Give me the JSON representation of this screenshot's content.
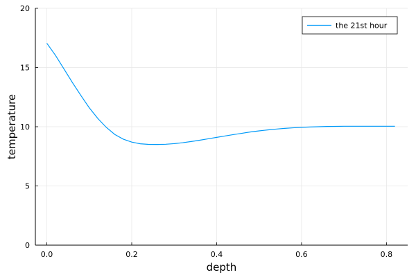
{
  "chart_data": {
    "type": "line",
    "title": "",
    "xlabel": "depth",
    "ylabel": "temperature",
    "xlim": [
      -0.027,
      0.85
    ],
    "ylim": [
      0,
      20
    ],
    "x_ticks": [
      0.0,
      0.2,
      0.4,
      0.6,
      0.8
    ],
    "x_tick_labels": [
      "0.0",
      "0.2",
      "0.4",
      "0.6",
      "0.8"
    ],
    "y_ticks": [
      0,
      5,
      10,
      15,
      20
    ],
    "y_tick_labels": [
      "0",
      "5",
      "10",
      "15",
      "20"
    ],
    "grid": true,
    "legend_position": "top-right",
    "series": [
      {
        "name": "the 21st hour",
        "color": "#009af9",
        "x": [
          0.0,
          0.02,
          0.04,
          0.06,
          0.08,
          0.1,
          0.12,
          0.14,
          0.16,
          0.18,
          0.2,
          0.22,
          0.24,
          0.26,
          0.28,
          0.3,
          0.32,
          0.34,
          0.36,
          0.38,
          0.4,
          0.42,
          0.44,
          0.46,
          0.48,
          0.5,
          0.52,
          0.54,
          0.56,
          0.58,
          0.6,
          0.62,
          0.64,
          0.66,
          0.68,
          0.7,
          0.72,
          0.74,
          0.76,
          0.78,
          0.8,
          0.82
        ],
        "y": [
          17.05,
          16.05,
          14.9,
          13.75,
          12.65,
          11.6,
          10.7,
          9.95,
          9.35,
          8.95,
          8.7,
          8.56,
          8.51,
          8.5,
          8.52,
          8.57,
          8.65,
          8.75,
          8.86,
          8.98,
          9.1,
          9.22,
          9.34,
          9.45,
          9.56,
          9.65,
          9.73,
          9.8,
          9.86,
          9.91,
          9.95,
          9.98,
          10.0,
          10.02,
          10.03,
          10.04,
          10.04,
          10.04,
          10.04,
          10.04,
          10.04,
          10.04
        ]
      }
    ]
  }
}
